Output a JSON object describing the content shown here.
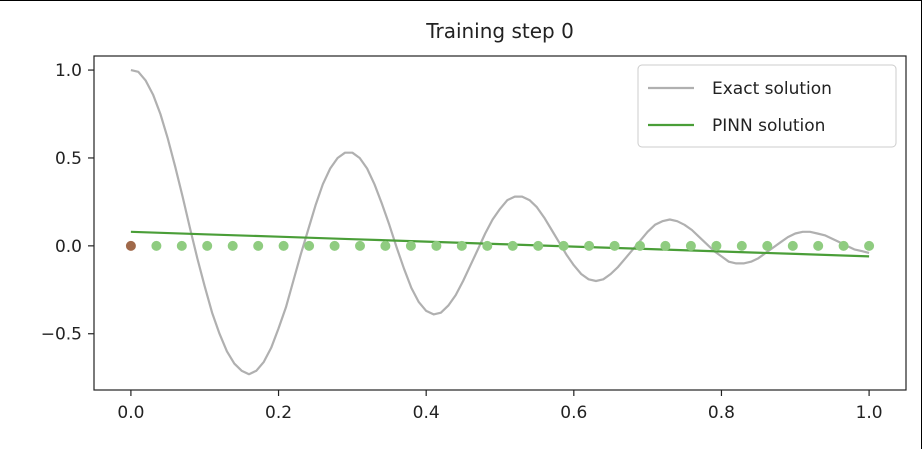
{
  "chart_data": {
    "type": "line",
    "title": "Training step 0",
    "xlabel": "",
    "ylabel": "",
    "xlim": [
      -0.05,
      1.05
    ],
    "ylim": [
      -0.82,
      1.08
    ],
    "xticks": [
      0.0,
      0.2,
      0.4,
      0.6,
      0.8,
      1.0
    ],
    "xtick_labels": [
      "0.0",
      "0.2",
      "0.4",
      "0.6",
      "0.8",
      "1.0"
    ],
    "yticks": [
      1.0,
      0.5,
      0.0,
      -0.5
    ],
    "ytick_labels": [
      "1.0",
      "0.5",
      "0.0",
      "−0.5"
    ],
    "grid": false,
    "legend_position": "top-right",
    "series": [
      {
        "name": "Exact solution",
        "kind": "line",
        "color": "#b0b0b0",
        "x": [
          0.0,
          0.01,
          0.02,
          0.03,
          0.04,
          0.05,
          0.06,
          0.07,
          0.08,
          0.09,
          0.1,
          0.11,
          0.12,
          0.13,
          0.14,
          0.15,
          0.16,
          0.17,
          0.18,
          0.19,
          0.2,
          0.21,
          0.22,
          0.23,
          0.24,
          0.25,
          0.26,
          0.27,
          0.28,
          0.29,
          0.3,
          0.31,
          0.32,
          0.33,
          0.34,
          0.35,
          0.36,
          0.37,
          0.38,
          0.39,
          0.4,
          0.41,
          0.42,
          0.43,
          0.44,
          0.45,
          0.46,
          0.47,
          0.48,
          0.49,
          0.5,
          0.51,
          0.52,
          0.53,
          0.54,
          0.55,
          0.56,
          0.57,
          0.58,
          0.59,
          0.6,
          0.61,
          0.62,
          0.63,
          0.64,
          0.65,
          0.66,
          0.67,
          0.68,
          0.69,
          0.7,
          0.71,
          0.72,
          0.73,
          0.74,
          0.75,
          0.76,
          0.77,
          0.78,
          0.79,
          0.8,
          0.81,
          0.82,
          0.83,
          0.84,
          0.85,
          0.86,
          0.87,
          0.88,
          0.89,
          0.9,
          0.91,
          0.92,
          0.93,
          0.94,
          0.95,
          0.96,
          0.97,
          0.98,
          0.99,
          1.0
        ],
        "y": [
          1.0,
          0.99,
          0.94,
          0.86,
          0.75,
          0.61,
          0.45,
          0.28,
          0.1,
          -0.07,
          -0.23,
          -0.38,
          -0.5,
          -0.6,
          -0.67,
          -0.71,
          -0.73,
          -0.71,
          -0.66,
          -0.58,
          -0.47,
          -0.35,
          -0.2,
          -0.05,
          0.09,
          0.23,
          0.35,
          0.44,
          0.5,
          0.53,
          0.53,
          0.5,
          0.44,
          0.35,
          0.24,
          0.12,
          -0.01,
          -0.13,
          -0.24,
          -0.32,
          -0.37,
          -0.39,
          -0.38,
          -0.34,
          -0.28,
          -0.2,
          -0.11,
          -0.02,
          0.07,
          0.15,
          0.21,
          0.26,
          0.28,
          0.28,
          0.26,
          0.22,
          0.16,
          0.09,
          0.02,
          -0.05,
          -0.11,
          -0.16,
          -0.19,
          -0.2,
          -0.19,
          -0.16,
          -0.12,
          -0.07,
          -0.02,
          0.03,
          0.08,
          0.12,
          0.14,
          0.15,
          0.14,
          0.12,
          0.09,
          0.05,
          0.01,
          -0.03,
          -0.06,
          -0.09,
          -0.1,
          -0.1,
          -0.09,
          -0.07,
          -0.04,
          -0.01,
          0.02,
          0.05,
          0.07,
          0.08,
          0.08,
          0.07,
          0.06,
          0.04,
          0.02,
          -0.0,
          -0.02,
          -0.03,
          -0.04
        ]
      },
      {
        "name": "PINN solution",
        "kind": "line",
        "color": "#4a9e38",
        "x": [
          0.0,
          0.1,
          0.2,
          0.3,
          0.4,
          0.5,
          0.6,
          0.7,
          0.8,
          0.9,
          1.0
        ],
        "y": [
          0.08,
          0.066,
          0.052,
          0.038,
          0.024,
          0.01,
          -0.004,
          -0.018,
          -0.032,
          -0.046,
          -0.06
        ]
      },
      {
        "kind": "scatter",
        "color": "#8fcc80",
        "x": [
          0.0345,
          0.069,
          0.1034,
          0.1379,
          0.1724,
          0.2069,
          0.2414,
          0.2759,
          0.3103,
          0.3448,
          0.3793,
          0.4138,
          0.4483,
          0.4828,
          0.5172,
          0.5517,
          0.5862,
          0.6207,
          0.6552,
          0.6897,
          0.7241,
          0.7586,
          0.7931,
          0.8276,
          0.8621,
          0.8966,
          0.931,
          0.9655,
          1.0
        ],
        "y": [
          0,
          0,
          0,
          0,
          0,
          0,
          0,
          0,
          0,
          0,
          0,
          0,
          0,
          0,
          0,
          0,
          0,
          0,
          0,
          0,
          0,
          0,
          0,
          0,
          0,
          0,
          0,
          0,
          0
        ]
      },
      {
        "kind": "scatter",
        "color": "#a0694a",
        "x": [
          0.0
        ],
        "y": [
          0.0
        ]
      }
    ]
  }
}
